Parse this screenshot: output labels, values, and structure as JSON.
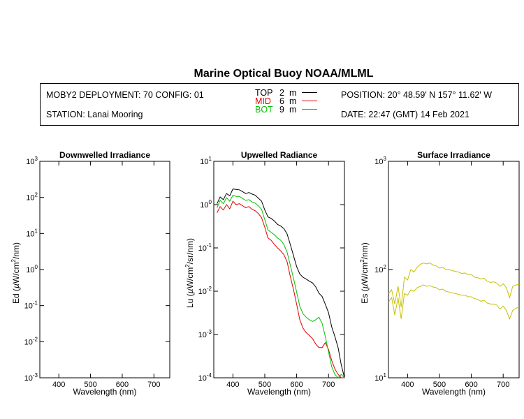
{
  "title": "Marine Optical Buoy NOAA/MLML",
  "info": {
    "deployment": "MOBY2 DEPLOYMENT: 70 CONFIG: 01",
    "station": "STATION: Lanai Mooring",
    "position": "POSITION: 20° 48.59' N   157° 11.62' W",
    "date": "DATE: 22:47 (GMT) 14 Feb 2021"
  },
  "legend": [
    {
      "name": "TOP",
      "depth": "2",
      "unit": "m",
      "color": "#000000"
    },
    {
      "name": "MID",
      "depth": "6",
      "unit": "m",
      "color": "#e00000"
    },
    {
      "name": "BOT",
      "depth": "9",
      "unit": "m",
      "color": "#00c000"
    }
  ],
  "chart_data": [
    {
      "type": "line",
      "title": "Downwelled Irradiance",
      "xlabel": "Wavelength (nm)",
      "ylabel": "Ed  (µW/cm²/nm)",
      "ylabel_parts": {
        "prefix": "Ed  (",
        "mu": "µ",
        "unit_a": "W/cm",
        "sup": "2",
        "unit_b": "/nm)"
      },
      "xlim": [
        340,
        750
      ],
      "ylim": [
        0.001,
        1000
      ],
      "yscale": "log",
      "xticks": [
        400,
        500,
        600,
        700
      ],
      "yticks": [
        {
          "base": "10",
          "exp": "-3"
        },
        {
          "base": "10",
          "exp": "-2"
        },
        {
          "base": "10",
          "exp": "-1"
        },
        {
          "base": "10",
          "exp": "0"
        },
        {
          "base": "10",
          "exp": "1"
        },
        {
          "base": "10",
          "exp": "2"
        },
        {
          "base": "10",
          "exp": "3"
        }
      ],
      "series": []
    },
    {
      "type": "line",
      "title": "Upwelled Radiance",
      "xlabel": "Wavelength (nm)",
      "ylabel": "Lu  (µW/cm²/sr/nm)",
      "ylabel_parts": {
        "prefix": "Lu  (",
        "mu": "µ",
        "unit_a": "W/cm",
        "sup": "2",
        "unit_b": "/sr/nm)"
      },
      "xlim": [
        340,
        750
      ],
      "ylim": [
        0.0001,
        10
      ],
      "yscale": "log",
      "xticks": [
        400,
        500,
        600,
        700
      ],
      "yticks": [
        {
          "base": "10",
          "exp": "-4"
        },
        {
          "base": "10",
          "exp": "-3"
        },
        {
          "base": "10",
          "exp": "-2"
        },
        {
          "base": "10",
          "exp": "-1"
        },
        {
          "base": "10",
          "exp": "0"
        },
        {
          "base": "10",
          "exp": "1"
        }
      ],
      "x": [
        350,
        360,
        370,
        380,
        390,
        400,
        410,
        420,
        430,
        440,
        450,
        460,
        470,
        480,
        490,
        500,
        510,
        520,
        530,
        540,
        550,
        560,
        570,
        580,
        590,
        600,
        610,
        620,
        630,
        640,
        650,
        660,
        670,
        680,
        690,
        700,
        710,
        720,
        730,
        740,
        750
      ],
      "series": [
        {
          "name": "TOP",
          "color": "#000000",
          "values": [
            1.05,
            1.5,
            1.3,
            1.8,
            1.6,
            2.3,
            2.25,
            2.2,
            2.0,
            1.8,
            1.9,
            1.75,
            1.65,
            1.4,
            1.2,
            0.75,
            0.52,
            0.48,
            0.42,
            0.35,
            0.32,
            0.28,
            0.21,
            0.12,
            0.067,
            0.037,
            0.025,
            0.021,
            0.019,
            0.017,
            0.0155,
            0.0125,
            0.009,
            0.0075,
            0.005,
            0.0032,
            0.0015,
            0.0009,
            0.0005,
            0.0002,
            0.0001
          ]
        },
        {
          "name": "MID",
          "color": "#e00000",
          "values": [
            0.65,
            0.9,
            0.75,
            1.0,
            0.8,
            1.2,
            1.0,
            1.05,
            0.95,
            0.85,
            0.9,
            0.78,
            0.72,
            0.62,
            0.5,
            0.3,
            0.17,
            0.15,
            0.12,
            0.1,
            0.085,
            0.07,
            0.048,
            0.022,
            0.011,
            0.005,
            0.0022,
            0.0014,
            0.0011,
            0.00095,
            0.0008,
            0.0006,
            0.0005,
            0.0005,
            0.00065,
            0.00045,
            0.00025,
            0.00016,
            0.00012,
            0.0001,
            0.0001
          ]
        },
        {
          "name": "BOT",
          "color": "#00c000",
          "values": [
            0.85,
            1.25,
            1.05,
            1.45,
            1.2,
            1.65,
            1.55,
            1.55,
            1.4,
            1.25,
            1.3,
            1.15,
            1.08,
            0.93,
            0.78,
            0.45,
            0.26,
            0.23,
            0.2,
            0.17,
            0.15,
            0.12,
            0.08,
            0.04,
            0.02,
            0.0095,
            0.0045,
            0.003,
            0.0025,
            0.0022,
            0.002,
            0.0022,
            0.0025,
            0.0018,
            0.0009,
            0.0004,
            0.00018,
            0.00012,
            0.0001,
            0.00012,
            0.0001
          ]
        }
      ]
    },
    {
      "type": "line",
      "title": "Surface Irradiance",
      "xlabel": "Wavelength (nm)",
      "ylabel": "Es  (µW/cm²/nm)",
      "ylabel_parts": {
        "prefix": "Es  (",
        "mu": "µ",
        "unit_a": "W/cm",
        "sup": "2",
        "unit_b": "/nm)"
      },
      "xlim": [
        340,
        750
      ],
      "ylim": [
        10,
        1000
      ],
      "yscale": "log",
      "xticks": [
        400,
        500,
        600,
        700
      ],
      "yticks": [
        {
          "base": "10",
          "exp": "1"
        },
        {
          "base": "10",
          "exp": "2"
        },
        {
          "base": "10",
          "exp": "3"
        }
      ],
      "x": [
        340,
        350,
        360,
        370,
        380,
        390,
        400,
        410,
        420,
        430,
        440,
        450,
        460,
        470,
        480,
        490,
        500,
        510,
        520,
        530,
        540,
        550,
        560,
        570,
        580,
        590,
        600,
        610,
        620,
        630,
        640,
        650,
        660,
        670,
        680,
        690,
        700,
        710,
        720,
        730,
        740,
        750
      ],
      "series": [
        {
          "color": "#c8c000",
          "values": [
            60,
            65,
            48,
            70,
            45,
            85,
            80,
            100,
            95,
            105,
            112,
            115,
            113,
            115,
            110,
            108,
            103,
            105,
            100,
            100,
            98,
            96,
            95,
            92,
            93,
            90,
            90,
            85,
            84,
            82,
            83,
            78,
            76,
            77,
            75,
            70,
            74,
            68,
            55,
            70,
            72,
            73
          ]
        },
        {
          "color": "#c8c000",
          "values": [
            50,
            55,
            38,
            55,
            35,
            60,
            58,
            65,
            63,
            68,
            70,
            72,
            70,
            71,
            69,
            68,
            65,
            66,
            63,
            62,
            61,
            60,
            59,
            58,
            58,
            56,
            56,
            54,
            53,
            51,
            52,
            49,
            48,
            48,
            47,
            43,
            46,
            42,
            35,
            42,
            44,
            45
          ]
        }
      ]
    }
  ]
}
